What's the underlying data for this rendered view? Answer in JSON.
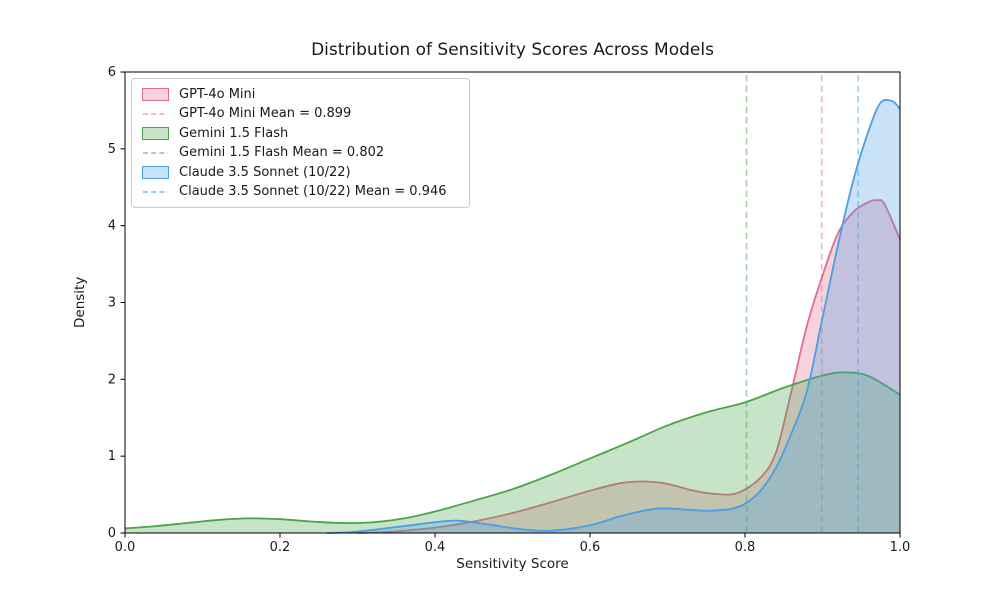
{
  "chart_data": {
    "type": "area",
    "subtype": "kde-density",
    "title": "Distribution of Sensitivity Scores Across Models",
    "xlabel": "Sensitivity Score",
    "ylabel": "Density",
    "xlim": [
      0.0,
      1.0
    ],
    "ylim": [
      0,
      6
    ],
    "x_tick_values": [
      0.0,
      0.2,
      0.4,
      0.6,
      0.8,
      1.0
    ],
    "x_tick_labels": [
      "0.0",
      "0.2",
      "0.4",
      "0.6",
      "0.8",
      "1.0"
    ],
    "y_tick_values": [
      0,
      1,
      2,
      3,
      4,
      5,
      6
    ],
    "y_tick_labels": [
      "0",
      "1",
      "2",
      "3",
      "4",
      "5",
      "6"
    ],
    "grid": false,
    "legend_position": "upper left",
    "fill_alpha": 0.3,
    "series": [
      {
        "name": "GPT-4o Mini",
        "mean": 0.899,
        "mean_label": "GPT-4o Mini Mean = 0.899",
        "color": "#e26b8e",
        "mean_line_color": "#f2a7bb",
        "points": [
          [
            0.3,
            0.0
          ],
          [
            0.33,
            0.01
          ],
          [
            0.36,
            0.03
          ],
          [
            0.4,
            0.07
          ],
          [
            0.45,
            0.15
          ],
          [
            0.5,
            0.26
          ],
          [
            0.55,
            0.4
          ],
          [
            0.6,
            0.55
          ],
          [
            0.64,
            0.65
          ],
          [
            0.67,
            0.67
          ],
          [
            0.7,
            0.64
          ],
          [
            0.73,
            0.56
          ],
          [
            0.76,
            0.51
          ],
          [
            0.79,
            0.52
          ],
          [
            0.82,
            0.72
          ],
          [
            0.84,
            1.05
          ],
          [
            0.86,
            1.85
          ],
          [
            0.88,
            2.7
          ],
          [
            0.9,
            3.35
          ],
          [
            0.92,
            3.9
          ],
          [
            0.94,
            4.18
          ],
          [
            0.96,
            4.31
          ],
          [
            0.97,
            4.33
          ],
          [
            0.98,
            4.28
          ],
          [
            1.0,
            3.82
          ]
        ]
      },
      {
        "name": "Gemini 1.5 Flash",
        "mean": 0.802,
        "mean_label": "Gemini 1.5 Flash Mean = 0.802",
        "color": "#4aa54a",
        "mean_line_color": "#a0d39a",
        "points": [
          [
            0.0,
            0.06
          ],
          [
            0.04,
            0.09
          ],
          [
            0.08,
            0.13
          ],
          [
            0.12,
            0.17
          ],
          [
            0.16,
            0.19
          ],
          [
            0.2,
            0.18
          ],
          [
            0.24,
            0.15
          ],
          [
            0.28,
            0.13
          ],
          [
            0.32,
            0.14
          ],
          [
            0.36,
            0.19
          ],
          [
            0.4,
            0.28
          ],
          [
            0.45,
            0.42
          ],
          [
            0.5,
            0.57
          ],
          [
            0.55,
            0.76
          ],
          [
            0.6,
            0.97
          ],
          [
            0.65,
            1.18
          ],
          [
            0.7,
            1.4
          ],
          [
            0.75,
            1.57
          ],
          [
            0.8,
            1.7
          ],
          [
            0.85,
            1.89
          ],
          [
            0.9,
            2.05
          ],
          [
            0.93,
            2.09
          ],
          [
            0.96,
            2.04
          ],
          [
            1.0,
            1.8
          ]
        ]
      },
      {
        "name": "Claude 3.5 Sonnet (10/22)",
        "mean": 0.946,
        "mean_label": "Claude 3.5 Sonnet (10/22) Mean = 0.946",
        "color": "#4b9ee1",
        "mean_line_color": "#92c5ec",
        "points": [
          [
            0.26,
            0.0
          ],
          [
            0.29,
            0.01
          ],
          [
            0.32,
            0.04
          ],
          [
            0.36,
            0.09
          ],
          [
            0.4,
            0.14
          ],
          [
            0.43,
            0.16
          ],
          [
            0.47,
            0.11
          ],
          [
            0.51,
            0.05
          ],
          [
            0.55,
            0.03
          ],
          [
            0.6,
            0.1
          ],
          [
            0.64,
            0.22
          ],
          [
            0.68,
            0.31
          ],
          [
            0.7,
            0.32
          ],
          [
            0.73,
            0.3
          ],
          [
            0.75,
            0.29
          ],
          [
            0.78,
            0.31
          ],
          [
            0.8,
            0.38
          ],
          [
            0.82,
            0.55
          ],
          [
            0.84,
            0.85
          ],
          [
            0.86,
            1.3
          ],
          [
            0.88,
            1.85
          ],
          [
            0.9,
            2.8
          ],
          [
            0.92,
            3.75
          ],
          [
            0.94,
            4.6
          ],
          [
            0.96,
            5.25
          ],
          [
            0.975,
            5.6
          ],
          [
            0.99,
            5.62
          ],
          [
            1.0,
            5.52
          ]
        ]
      }
    ]
  },
  "style": {
    "background": "#ffffff",
    "axis_color": "#000000",
    "text_color": "#1a1a1a",
    "legend_border": "#cccccc"
  }
}
